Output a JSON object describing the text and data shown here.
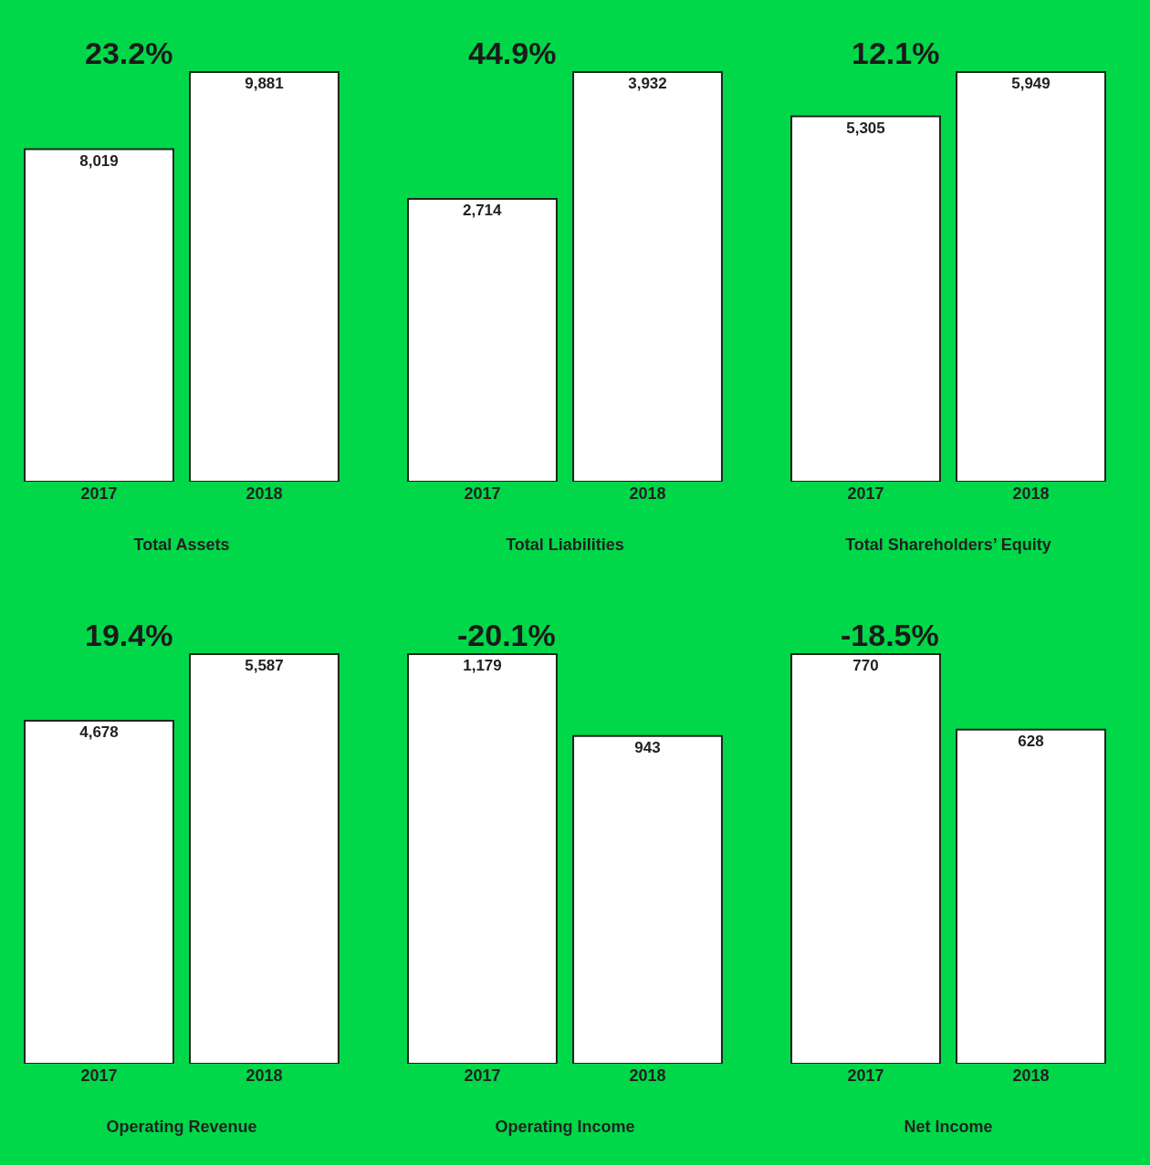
{
  "chart_data": [
    {
      "type": "bar",
      "xlabel": "Total Assets",
      "categories": [
        "2017",
        "2018"
      ],
      "values": [
        8019,
        9881
      ],
      "value_labels": [
        "8,019",
        "9,881"
      ],
      "color": "#ffffff",
      "annotations": [
        "23.2%"
      ]
    },
    {
      "type": "bar",
      "xlabel": "Total Liabilities",
      "categories": [
        "2017",
        "2018"
      ],
      "values": [
        2714,
        3932
      ],
      "value_labels": [
        "2,714",
        "3,932"
      ],
      "color": "#ffffff",
      "annotations": [
        "44.9%"
      ]
    },
    {
      "type": "bar",
      "xlabel": "Total Shareholders’ Equity",
      "categories": [
        "2017",
        "2018"
      ],
      "values": [
        5305,
        5949
      ],
      "value_labels": [
        "5,305",
        "5,949"
      ],
      "color": "#ffffff",
      "annotations": [
        "12.1%"
      ]
    },
    {
      "type": "bar",
      "xlabel": "Operating Revenue",
      "categories": [
        "2017",
        "2018"
      ],
      "values": [
        4678,
        5587
      ],
      "value_labels": [
        "4,678",
        "5,587"
      ],
      "color": "#ffffff",
      "annotations": [
        "19.4%"
      ]
    },
    {
      "type": "bar",
      "xlabel": "Operating Income",
      "categories": [
        "2017",
        "2018"
      ],
      "values": [
        1179,
        943
      ],
      "value_labels": [
        "1,179",
        "943"
      ],
      "color": "#ffffff",
      "annotations": [
        "-20.1%"
      ]
    },
    {
      "type": "bar",
      "xlabel": "Net Income",
      "categories": [
        "2017",
        "2018"
      ],
      "values": [
        770,
        628
      ],
      "value_labels": [
        "770",
        "628"
      ],
      "color": "#ffffff",
      "annotations": [
        "-18.5%"
      ]
    }
  ]
}
